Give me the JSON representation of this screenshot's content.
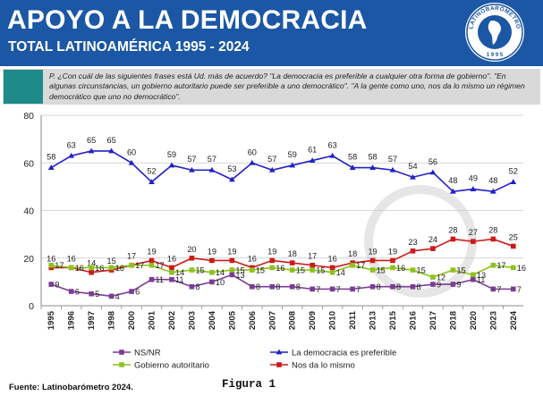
{
  "header": {
    "title": "APOYO A LA DEMOCRACIA",
    "subtitle": "TOTAL LATINOAMÉRICA 1995 - 2024",
    "logo_text": "LATINOBARÓMETRO 1995",
    "brand_color": "#1b57a5"
  },
  "question": "P. ¿Con cuál de las siguientes frases está Ud. más de acuerdo? \"La democracia es preferible a cualquier otra forma de gobierno\". \"En algunas circunstancias, un gobierno autoritario puede ser preferible a uno democrático\". \"A la gente como uno, nos da lo mismo un régimen democrático que uno no democrático\".",
  "footer": {
    "source": "Fuente: Latinobarómetro 2024.",
    "figure_label": "Figura 1"
  },
  "chart_data": {
    "type": "line",
    "x": [
      "1995",
      "1996",
      "1997",
      "1998",
      "2000",
      "2001",
      "2002",
      "2003",
      "2004",
      "2005",
      "2006",
      "2007",
      "2008",
      "2009",
      "2010",
      "2011",
      "2013",
      "2015",
      "2016",
      "2017",
      "2018",
      "2020",
      "2023",
      "2024"
    ],
    "ylim": [
      0,
      80
    ],
    "yticks": [
      0,
      20,
      40,
      60,
      80
    ],
    "grid": true,
    "legend_position": "bottom",
    "series": [
      {
        "name": "La democracia es preferible",
        "color": "#2020c8",
        "marker": "triangle",
        "values": [
          58,
          63,
          65,
          65,
          60,
          52,
          59,
          57,
          57,
          53,
          60,
          57,
          59,
          61,
          63,
          58,
          58,
          57,
          54,
          56,
          48,
          49,
          48,
          52
        ]
      },
      {
        "name": "Nos da lo mismo",
        "color": "#cc1a1a",
        "marker": "square",
        "values": [
          16,
          16,
          14,
          15,
          17,
          19,
          16,
          20,
          19,
          19,
          16,
          19,
          18,
          17,
          16,
          18,
          19,
          19,
          23,
          24,
          28,
          27,
          28,
          25
        ]
      },
      {
        "name": "Gobierno autoritario",
        "color": "#8ec21e",
        "marker": "square",
        "values": [
          17,
          16,
          16,
          16,
          17,
          17,
          14,
          15,
          14,
          15,
          15,
          16,
          15,
          15,
          14,
          17,
          15,
          16,
          15,
          12,
          15,
          13,
          17,
          16
        ]
      },
      {
        "name": "NS/NR",
        "color": "#7a3c94",
        "marker": "square",
        "values": [
          9,
          6,
          5,
          4,
          6,
          11,
          11,
          8,
          10,
          13,
          8,
          8,
          8,
          7,
          7,
          7,
          8,
          8,
          8,
          9,
          9,
          11,
          7,
          7
        ]
      }
    ],
    "legend": [
      {
        "name": "NS/NR",
        "color": "#7a3c94",
        "marker": "square"
      },
      {
        "name": "La democracia es preferible",
        "color": "#2020c8",
        "marker": "triangle"
      },
      {
        "name": "Gobierno autoritario",
        "color": "#8ec21e",
        "marker": "square"
      },
      {
        "name": "Nos da lo mismo",
        "color": "#cc1a1a",
        "marker": "square"
      }
    ]
  }
}
